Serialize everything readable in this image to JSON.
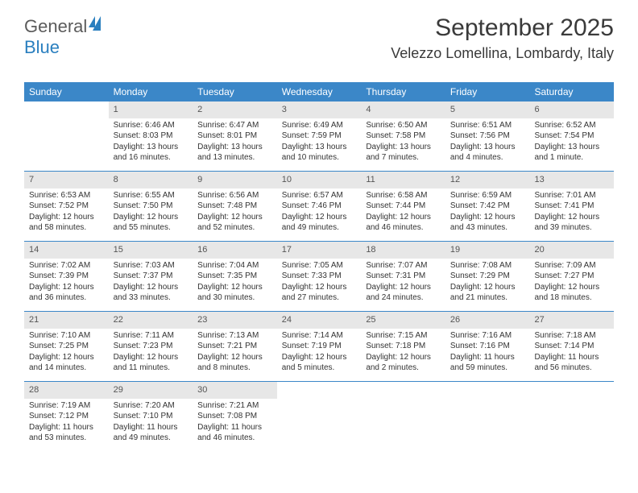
{
  "brand": {
    "part1": "General",
    "part2": "Blue"
  },
  "title": "September 2025",
  "subtitle": "Velezzo Lomellina, Lombardy, Italy",
  "colors": {
    "header_bg": "#3b87c8",
    "header_text": "#ffffff",
    "daynum_bg": "#e7e7e7",
    "divider": "#3b87c8",
    "text": "#333333"
  },
  "day_names": [
    "Sunday",
    "Monday",
    "Tuesday",
    "Wednesday",
    "Thursday",
    "Friday",
    "Saturday"
  ],
  "weeks": [
    [
      {
        "n": "",
        "sunrise": "",
        "sunset": "",
        "daylight": ""
      },
      {
        "n": "1",
        "sunrise": "Sunrise: 6:46 AM",
        "sunset": "Sunset: 8:03 PM",
        "daylight": "Daylight: 13 hours and 16 minutes."
      },
      {
        "n": "2",
        "sunrise": "Sunrise: 6:47 AM",
        "sunset": "Sunset: 8:01 PM",
        "daylight": "Daylight: 13 hours and 13 minutes."
      },
      {
        "n": "3",
        "sunrise": "Sunrise: 6:49 AM",
        "sunset": "Sunset: 7:59 PM",
        "daylight": "Daylight: 13 hours and 10 minutes."
      },
      {
        "n": "4",
        "sunrise": "Sunrise: 6:50 AM",
        "sunset": "Sunset: 7:58 PM",
        "daylight": "Daylight: 13 hours and 7 minutes."
      },
      {
        "n": "5",
        "sunrise": "Sunrise: 6:51 AM",
        "sunset": "Sunset: 7:56 PM",
        "daylight": "Daylight: 13 hours and 4 minutes."
      },
      {
        "n": "6",
        "sunrise": "Sunrise: 6:52 AM",
        "sunset": "Sunset: 7:54 PM",
        "daylight": "Daylight: 13 hours and 1 minute."
      }
    ],
    [
      {
        "n": "7",
        "sunrise": "Sunrise: 6:53 AM",
        "sunset": "Sunset: 7:52 PM",
        "daylight": "Daylight: 12 hours and 58 minutes."
      },
      {
        "n": "8",
        "sunrise": "Sunrise: 6:55 AM",
        "sunset": "Sunset: 7:50 PM",
        "daylight": "Daylight: 12 hours and 55 minutes."
      },
      {
        "n": "9",
        "sunrise": "Sunrise: 6:56 AM",
        "sunset": "Sunset: 7:48 PM",
        "daylight": "Daylight: 12 hours and 52 minutes."
      },
      {
        "n": "10",
        "sunrise": "Sunrise: 6:57 AM",
        "sunset": "Sunset: 7:46 PM",
        "daylight": "Daylight: 12 hours and 49 minutes."
      },
      {
        "n": "11",
        "sunrise": "Sunrise: 6:58 AM",
        "sunset": "Sunset: 7:44 PM",
        "daylight": "Daylight: 12 hours and 46 minutes."
      },
      {
        "n": "12",
        "sunrise": "Sunrise: 6:59 AM",
        "sunset": "Sunset: 7:42 PM",
        "daylight": "Daylight: 12 hours and 43 minutes."
      },
      {
        "n": "13",
        "sunrise": "Sunrise: 7:01 AM",
        "sunset": "Sunset: 7:41 PM",
        "daylight": "Daylight: 12 hours and 39 minutes."
      }
    ],
    [
      {
        "n": "14",
        "sunrise": "Sunrise: 7:02 AM",
        "sunset": "Sunset: 7:39 PM",
        "daylight": "Daylight: 12 hours and 36 minutes."
      },
      {
        "n": "15",
        "sunrise": "Sunrise: 7:03 AM",
        "sunset": "Sunset: 7:37 PM",
        "daylight": "Daylight: 12 hours and 33 minutes."
      },
      {
        "n": "16",
        "sunrise": "Sunrise: 7:04 AM",
        "sunset": "Sunset: 7:35 PM",
        "daylight": "Daylight: 12 hours and 30 minutes."
      },
      {
        "n": "17",
        "sunrise": "Sunrise: 7:05 AM",
        "sunset": "Sunset: 7:33 PM",
        "daylight": "Daylight: 12 hours and 27 minutes."
      },
      {
        "n": "18",
        "sunrise": "Sunrise: 7:07 AM",
        "sunset": "Sunset: 7:31 PM",
        "daylight": "Daylight: 12 hours and 24 minutes."
      },
      {
        "n": "19",
        "sunrise": "Sunrise: 7:08 AM",
        "sunset": "Sunset: 7:29 PM",
        "daylight": "Daylight: 12 hours and 21 minutes."
      },
      {
        "n": "20",
        "sunrise": "Sunrise: 7:09 AM",
        "sunset": "Sunset: 7:27 PM",
        "daylight": "Daylight: 12 hours and 18 minutes."
      }
    ],
    [
      {
        "n": "21",
        "sunrise": "Sunrise: 7:10 AM",
        "sunset": "Sunset: 7:25 PM",
        "daylight": "Daylight: 12 hours and 14 minutes."
      },
      {
        "n": "22",
        "sunrise": "Sunrise: 7:11 AM",
        "sunset": "Sunset: 7:23 PM",
        "daylight": "Daylight: 12 hours and 11 minutes."
      },
      {
        "n": "23",
        "sunrise": "Sunrise: 7:13 AM",
        "sunset": "Sunset: 7:21 PM",
        "daylight": "Daylight: 12 hours and 8 minutes."
      },
      {
        "n": "24",
        "sunrise": "Sunrise: 7:14 AM",
        "sunset": "Sunset: 7:19 PM",
        "daylight": "Daylight: 12 hours and 5 minutes."
      },
      {
        "n": "25",
        "sunrise": "Sunrise: 7:15 AM",
        "sunset": "Sunset: 7:18 PM",
        "daylight": "Daylight: 12 hours and 2 minutes."
      },
      {
        "n": "26",
        "sunrise": "Sunrise: 7:16 AM",
        "sunset": "Sunset: 7:16 PM",
        "daylight": "Daylight: 11 hours and 59 minutes."
      },
      {
        "n": "27",
        "sunrise": "Sunrise: 7:18 AM",
        "sunset": "Sunset: 7:14 PM",
        "daylight": "Daylight: 11 hours and 56 minutes."
      }
    ],
    [
      {
        "n": "28",
        "sunrise": "Sunrise: 7:19 AM",
        "sunset": "Sunset: 7:12 PM",
        "daylight": "Daylight: 11 hours and 53 minutes."
      },
      {
        "n": "29",
        "sunrise": "Sunrise: 7:20 AM",
        "sunset": "Sunset: 7:10 PM",
        "daylight": "Daylight: 11 hours and 49 minutes."
      },
      {
        "n": "30",
        "sunrise": "Sunrise: 7:21 AM",
        "sunset": "Sunset: 7:08 PM",
        "daylight": "Daylight: 11 hours and 46 minutes."
      },
      {
        "n": "",
        "sunrise": "",
        "sunset": "",
        "daylight": ""
      },
      {
        "n": "",
        "sunrise": "",
        "sunset": "",
        "daylight": ""
      },
      {
        "n": "",
        "sunrise": "",
        "sunset": "",
        "daylight": ""
      },
      {
        "n": "",
        "sunrise": "",
        "sunset": "",
        "daylight": ""
      }
    ]
  ]
}
